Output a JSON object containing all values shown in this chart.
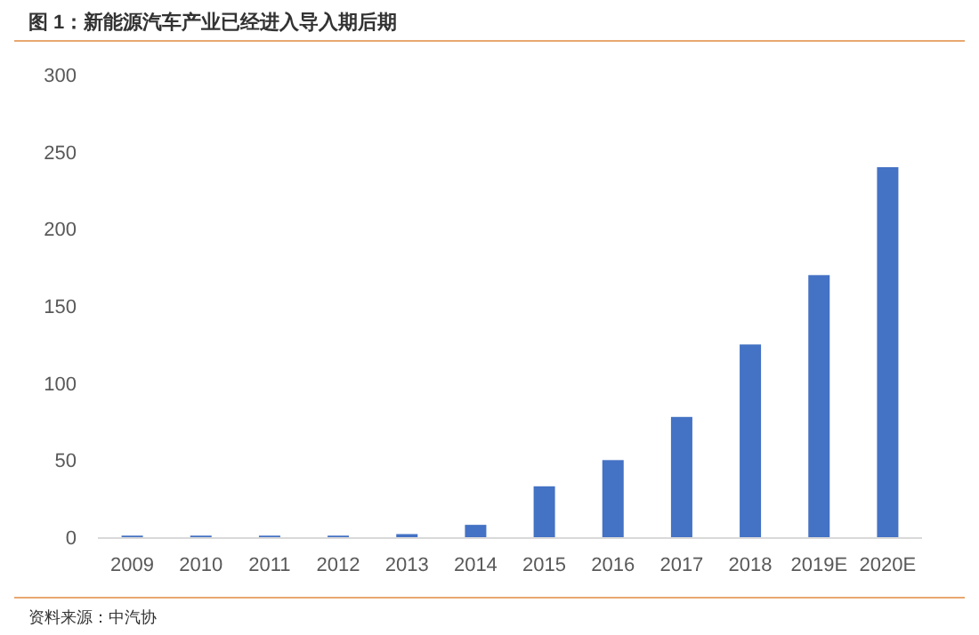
{
  "chart_data": {
    "type": "bar",
    "title": "图 1：新能源汽车产业已经进入导入期后期",
    "categories": [
      "2009",
      "2010",
      "2011",
      "2012",
      "2013",
      "2014",
      "2015",
      "2016",
      "2017",
      "2018",
      "2019E",
      "2020E"
    ],
    "values": [
      1,
      1,
      1,
      1,
      2,
      8,
      33,
      50,
      78,
      125,
      170,
      240
    ],
    "color": "#4472c4",
    "ylim": [
      0,
      300
    ],
    "yticks": [
      0,
      50,
      100,
      150,
      200,
      250,
      300
    ],
    "annotations": [
      "资料来源：中汽协"
    ]
  }
}
